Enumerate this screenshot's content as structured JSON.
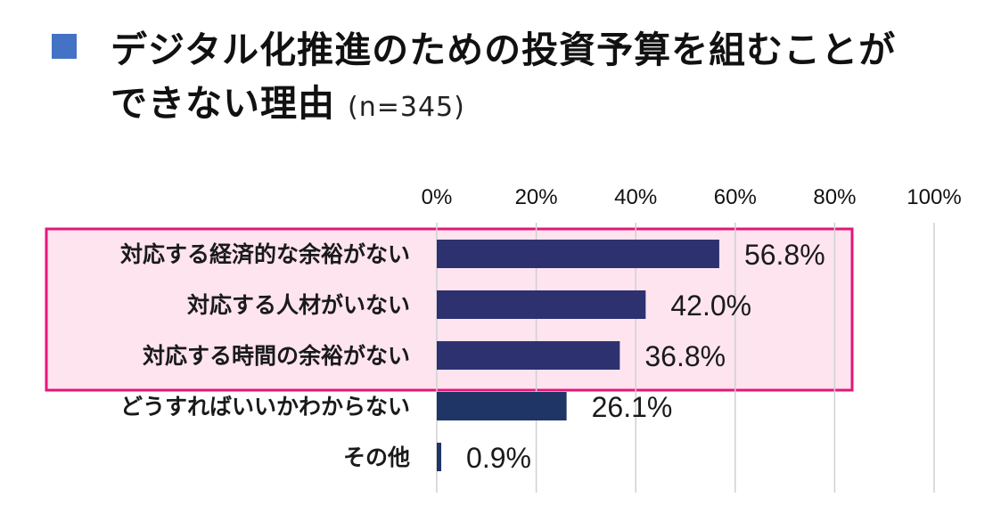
{
  "title": {
    "line1": "デジタル化推進のための投資予算を組むことが",
    "line2": "できない理由",
    "sample_size": "(n=345)"
  },
  "colors": {
    "title_square": "#4472c4",
    "bar": "#2e3170",
    "bar_dark": "#1f3566",
    "highlight_fill": "#fde4ef",
    "highlight_border": "#e4167a",
    "gridline": "#d0d0d0"
  },
  "chart_data": {
    "type": "bar",
    "orientation": "horizontal",
    "xlim": [
      0,
      100
    ],
    "ticks": [
      {
        "value": 0,
        "label": "0%"
      },
      {
        "value": 20,
        "label": "20%"
      },
      {
        "value": 40,
        "label": "40%"
      },
      {
        "value": 60,
        "label": "60%"
      },
      {
        "value": 80,
        "label": "80%"
      },
      {
        "value": 100,
        "label": "100%"
      }
    ],
    "axis_position": "top",
    "grid": true,
    "categories": [
      "対応する経済的な余裕がない",
      "対応する人材がいない",
      "対応する時間の余裕がない",
      "どうすればいいかわからない",
      "その他"
    ],
    "values": [
      56.8,
      42.0,
      36.8,
      26.1,
      0.9
    ],
    "value_labels": [
      "56.8%",
      "42.0%",
      "36.8%",
      "26.1%",
      "0.9%"
    ],
    "highlighted_categories": [
      0,
      1,
      2
    ]
  }
}
